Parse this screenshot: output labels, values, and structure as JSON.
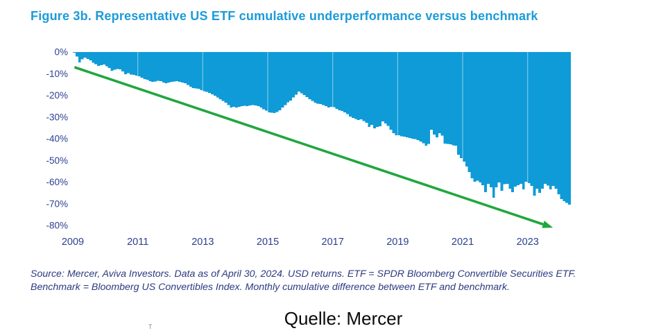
{
  "title": "Figure 3b. Representative US ETF cumulative underperformance versus benchmark",
  "source_note": {
    "line1": "Source: Mercer, Aviva Investors. Data as of April 30, 2024. USD returns. ETF = SPDR Bloomberg Convertible Securities ETF.",
    "line2": "Benchmark = Bloomberg US Convertibles Index. Monthly cumulative difference between ETF and benchmark."
  },
  "caption": "Quelle: Mercer",
  "artifact": "T",
  "colors": {
    "title": "#1b9bd9",
    "area": "#0f9bd7",
    "gridline": "#ffffff",
    "gridline_opacity": 0.45,
    "arrow": "#21a73d",
    "axis_text": "#2b3f92",
    "source_text": "#2b3a80",
    "caption_text": "#0a0a0a"
  },
  "chart_data": {
    "type": "area",
    "title": "Representative US ETF cumulative underperformance versus benchmark",
    "x_unit": "month",
    "start": "2009-01",
    "end": "2024-04",
    "x_start_year": 2009.0,
    "x_end_year": 2024.33,
    "ylim": [
      -80,
      0
    ],
    "grid": "vertical-only",
    "legend": "none",
    "y_ticks": [
      "0%",
      "-10%",
      "-20%",
      "-30%",
      "-40%",
      "-50%",
      "-60%",
      "-70%",
      "-80%"
    ],
    "x_ticks": [
      "2009",
      "2011",
      "2013",
      "2015",
      "2017",
      "2019",
      "2021",
      "2023"
    ],
    "gridline_years": [
      2011,
      2013,
      2015,
      2017,
      2019,
      2021,
      2023
    ],
    "series": [
      {
        "name": "Monthly cumulative difference between ETF and benchmark (%)",
        "values": [
          -0.3,
          -2.0,
          -4.8,
          -3.4,
          -2.6,
          -3.2,
          -3.8,
          -5.0,
          -5.6,
          -6.4,
          -6.0,
          -5.8,
          -6.6,
          -7.4,
          -8.6,
          -8.2,
          -7.8,
          -8.0,
          -9.0,
          -10.2,
          -9.8,
          -10.4,
          -10.6,
          -10.9,
          -11.2,
          -11.8,
          -12.4,
          -12.8,
          -13.4,
          -13.8,
          -13.6,
          -13.2,
          -13.4,
          -14.0,
          -14.4,
          -14.1,
          -13.8,
          -13.6,
          -13.4,
          -13.7,
          -14.0,
          -14.4,
          -15.2,
          -16.0,
          -16.6,
          -16.8,
          -17.0,
          -17.6,
          -18.0,
          -18.4,
          -18.8,
          -19.5,
          -20.2,
          -21.0,
          -21.8,
          -22.6,
          -23.4,
          -24.4,
          -25.6,
          -25.3,
          -25.6,
          -25.2,
          -25.0,
          -24.8,
          -25.0,
          -24.6,
          -24.4,
          -24.6,
          -25.0,
          -25.6,
          -26.4,
          -27.0,
          -27.8,
          -28.0,
          -28.2,
          -27.6,
          -26.8,
          -25.6,
          -24.4,
          -23.2,
          -22.4,
          -21.0,
          -19.6,
          -18.2,
          -19.0,
          -19.8,
          -20.8,
          -21.8,
          -22.6,
          -23.4,
          -23.8,
          -24.0,
          -24.4,
          -25.0,
          -25.6,
          -25.2,
          -25.4,
          -26.2,
          -26.8,
          -27.2,
          -27.8,
          -28.6,
          -29.8,
          -30.4,
          -30.8,
          -31.4,
          -31.0,
          -31.8,
          -32.6,
          -34.6,
          -33.6,
          -35.2,
          -34.6,
          -34.2,
          -32.0,
          -33.0,
          -34.0,
          -35.8,
          -37.4,
          -38.4,
          -38.4,
          -38.8,
          -39.0,
          -39.4,
          -39.6,
          -40.0,
          -40.2,
          -40.6,
          -41.2,
          -42.0,
          -43.2,
          -42.4,
          -35.8,
          -38.0,
          -39.4,
          -37.4,
          -38.6,
          -42.2,
          -42.4,
          -42.6,
          -43.0,
          -43.2,
          -47.4,
          -49.0,
          -50.6,
          -52.8,
          -55.4,
          -58.2,
          -59.8,
          -59.4,
          -60.2,
          -61.4,
          -64.6,
          -60.8,
          -62.4,
          -67.2,
          -62.4,
          -60.2,
          -64.0,
          -61.0,
          -60.8,
          -63.0,
          -64.6,
          -62.0,
          -61.4,
          -60.8,
          -63.4,
          -59.8,
          -60.4,
          -61.8,
          -66.2,
          -63.0,
          -65.0,
          -63.0,
          -60.8,
          -61.6,
          -63.4,
          -61.8,
          -63.0,
          -65.6,
          -67.8,
          -68.8,
          -69.6,
          -70.4
        ]
      }
    ],
    "trend_arrow": {
      "x1_year": 2009.05,
      "y1_pct": -7.0,
      "x2_year": 2023.78,
      "y2_pct": -81.0,
      "color": "#21a73d"
    }
  }
}
